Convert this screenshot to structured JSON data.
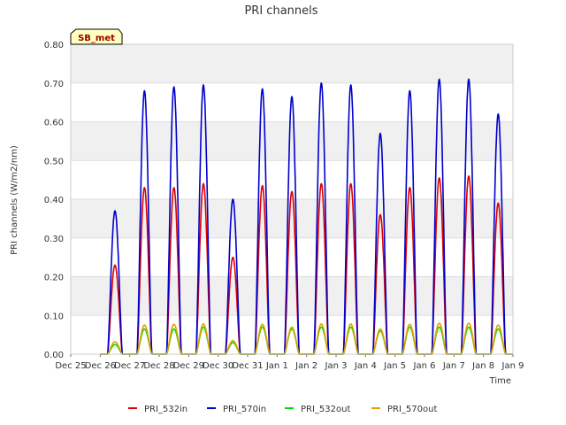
{
  "chart_data": {
    "type": "line",
    "title": "PRI channels",
    "xlabel": "Time",
    "ylabel": "PRI channels (W/m2/nm)",
    "ylim": [
      0,
      0.8
    ],
    "xlim": [
      0,
      15
    ],
    "yticks": [
      0,
      0.1,
      0.2,
      0.3,
      0.4,
      0.5,
      0.6,
      0.7,
      0.8
    ],
    "ytick_labels": [
      "0.00",
      "0.10",
      "0.20",
      "0.30",
      "0.40",
      "0.50",
      "0.60",
      "0.70",
      "0.80"
    ],
    "xtick_labels": [
      "Dec 25",
      "Dec 26",
      "Dec 27",
      "Dec 28",
      "Dec 29",
      "Dec 30",
      "Dec 31",
      "Jan 1",
      "Jan 2",
      "Jan 3",
      "Jan 4",
      "Jan 5",
      "Jan 6",
      "Jan 7",
      "Jan 8",
      "Jan 9"
    ],
    "station_label": "SB_met",
    "legend_position": "bottom-center",
    "grid": true,
    "x_unit": "days since Dec 25",
    "series": [
      {
        "name": "PRI_532in",
        "color": "#dd0000",
        "daily_peaks": [
          {
            "day": 1,
            "peak": 0.23
          },
          {
            "day": 2,
            "peak": 0.43
          },
          {
            "day": 3,
            "peak": 0.43
          },
          {
            "day": 4,
            "peak": 0.44
          },
          {
            "day": 5,
            "peak": 0.25
          },
          {
            "day": 6,
            "peak": 0.435
          },
          {
            "day": 7,
            "peak": 0.42
          },
          {
            "day": 8,
            "peak": 0.44
          },
          {
            "day": 9,
            "peak": 0.44
          },
          {
            "day": 10,
            "peak": 0.36
          },
          {
            "day": 11,
            "peak": 0.43
          },
          {
            "day": 12,
            "peak": 0.455
          },
          {
            "day": 13,
            "peak": 0.46
          },
          {
            "day": 14,
            "peak": 0.39
          }
        ]
      },
      {
        "name": "PRI_570in",
        "color": "#0000cc",
        "daily_peaks": [
          {
            "day": 1,
            "peak": 0.37
          },
          {
            "day": 2,
            "peak": 0.68
          },
          {
            "day": 3,
            "peak": 0.69
          },
          {
            "day": 4,
            "peak": 0.695
          },
          {
            "day": 5,
            "peak": 0.4
          },
          {
            "day": 6,
            "peak": 0.685
          },
          {
            "day": 7,
            "peak": 0.665
          },
          {
            "day": 8,
            "peak": 0.7
          },
          {
            "day": 9,
            "peak": 0.695
          },
          {
            "day": 10,
            "peak": 0.57
          },
          {
            "day": 11,
            "peak": 0.68
          },
          {
            "day": 12,
            "peak": 0.71
          },
          {
            "day": 13,
            "peak": 0.71
          },
          {
            "day": 14,
            "peak": 0.62
          }
        ]
      },
      {
        "name": "PRI_532out",
        "color": "#00dd00",
        "daily_peaks": [
          {
            "day": 1,
            "peak": 0.025
          },
          {
            "day": 2,
            "peak": 0.065
          },
          {
            "day": 3,
            "peak": 0.065
          },
          {
            "day": 4,
            "peak": 0.07
          },
          {
            "day": 5,
            "peak": 0.03
          },
          {
            "day": 6,
            "peak": 0.07
          },
          {
            "day": 7,
            "peak": 0.065
          },
          {
            "day": 8,
            "peak": 0.07
          },
          {
            "day": 9,
            "peak": 0.07
          },
          {
            "day": 10,
            "peak": 0.06
          },
          {
            "day": 11,
            "peak": 0.07
          },
          {
            "day": 12,
            "peak": 0.07
          },
          {
            "day": 13,
            "peak": 0.07
          },
          {
            "day": 14,
            "peak": 0.065
          }
        ]
      },
      {
        "name": "PRI_570out",
        "color": "#e6a000",
        "daily_peaks": [
          {
            "day": 1,
            "peak": 0.032
          },
          {
            "day": 2,
            "peak": 0.075
          },
          {
            "day": 3,
            "peak": 0.077
          },
          {
            "day": 4,
            "peak": 0.078
          },
          {
            "day": 5,
            "peak": 0.035
          },
          {
            "day": 6,
            "peak": 0.077
          },
          {
            "day": 7,
            "peak": 0.07
          },
          {
            "day": 8,
            "peak": 0.078
          },
          {
            "day": 9,
            "peak": 0.078
          },
          {
            "day": 10,
            "peak": 0.065
          },
          {
            "day": 11,
            "peak": 0.077
          },
          {
            "day": 12,
            "peak": 0.08
          },
          {
            "day": 13,
            "peak": 0.08
          },
          {
            "day": 14,
            "peak": 0.075
          }
        ]
      }
    ]
  }
}
